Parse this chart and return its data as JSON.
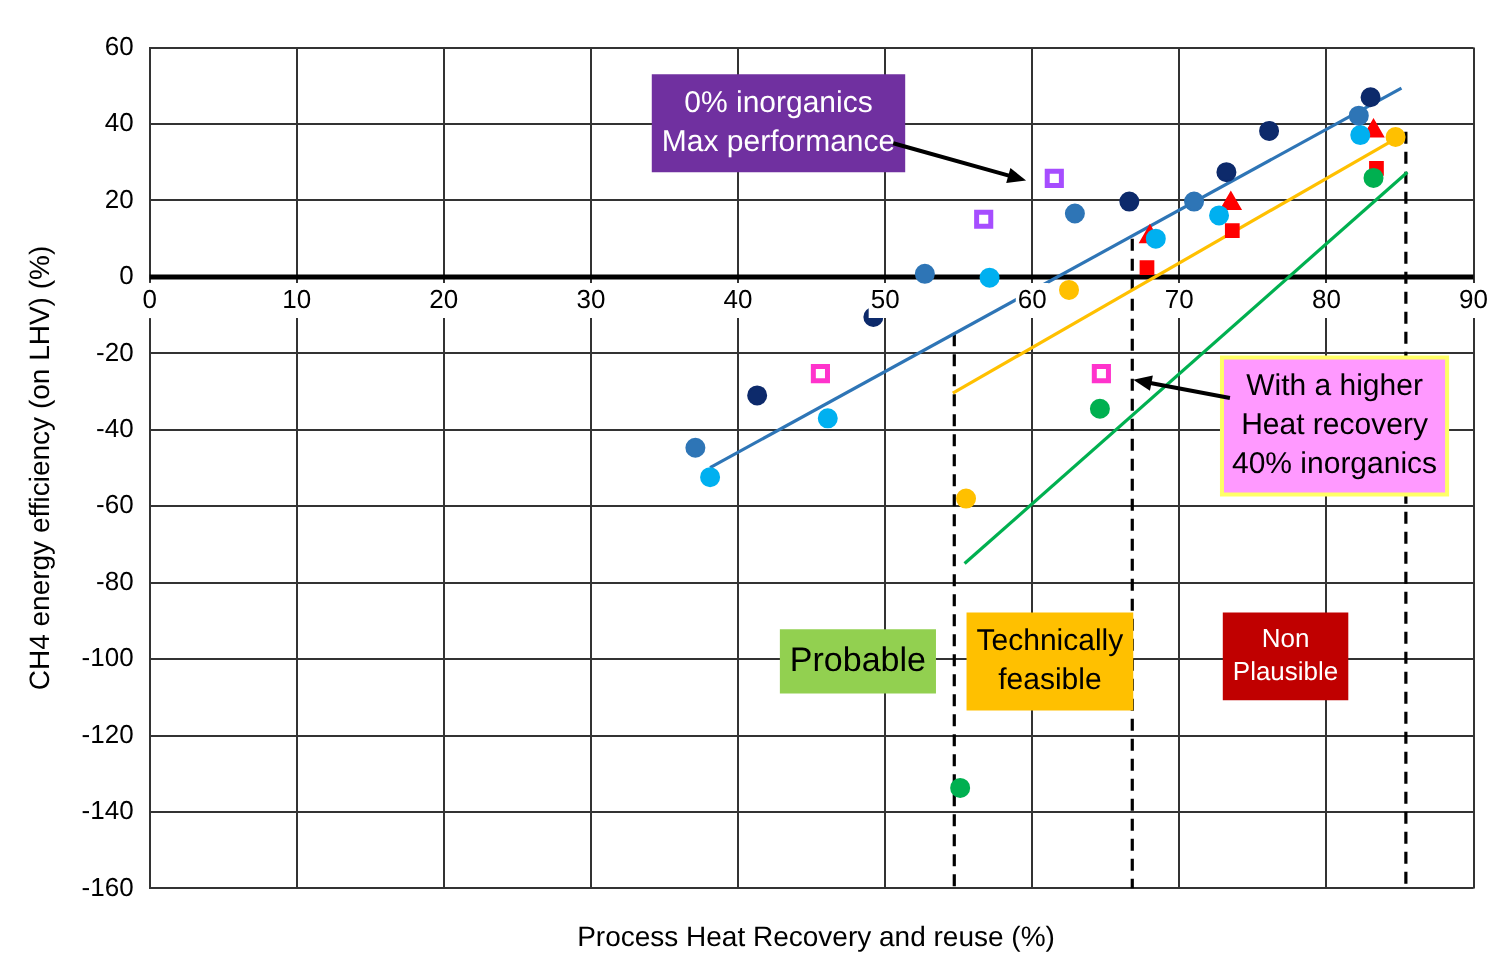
{
  "chart_data": {
    "type": "scatter",
    "xlabel": "Process Heat Recovery and reuse  (%)",
    "ylabel": "CH4 energy efficiency (on LHV) (%)",
    "xlim": [
      0,
      90
    ],
    "xticks": [
      0,
      10,
      20,
      30,
      40,
      50,
      60,
      70,
      80,
      90
    ],
    "ylim": [
      -160,
      60
    ],
    "yticks": [
      -160,
      -140,
      -120,
      -100,
      -80,
      -60,
      -40,
      -20,
      0,
      20,
      40,
      60
    ],
    "grid": true,
    "legend": false,
    "series": [
      {
        "color": "#0d2a6b",
        "marker": "circle",
        "x": [
          41.3,
          49.2,
          66.6,
          73.2,
          76.1,
          83.0
        ],
        "values": [
          -31,
          -10.5,
          19.7,
          27.4,
          38.2,
          47
        ]
      },
      {
        "color": "#2e75b6",
        "marker": "circle",
        "x": [
          37.1,
          52.7,
          62.9,
          71.0,
          82.2
        ],
        "values": [
          -44.7,
          0.8,
          16.6,
          19.7,
          42.2
        ]
      },
      {
        "color": "#00b0f0",
        "marker": "circle",
        "x": [
          38.1,
          46.1,
          57.1,
          68.4,
          72.7,
          82.3
        ],
        "values": [
          -52.4,
          -37,
          -0.2,
          10,
          16.1,
          37.1
        ]
      },
      {
        "color": "#ffc000",
        "marker": "circle",
        "x": [
          62.5,
          55.5,
          84.7
        ],
        "values": [
          -3.4,
          -58,
          36.6
        ]
      },
      {
        "color": "#00b050",
        "marker": "circle",
        "x": [
          64.6,
          55.1,
          83.2
        ],
        "values": [
          -34.5,
          -133.7,
          25.9
        ]
      },
      {
        "color": "#ff0000",
        "marker": "triangle",
        "x": [
          68.0,
          73.5,
          83.2
        ],
        "values": [
          10.5,
          19.2,
          38.2
        ]
      },
      {
        "color": "#ff0000",
        "marker": "square",
        "x": [
          67.8,
          73.6,
          83.4
        ],
        "values": [
          2.4,
          12.1,
          28.4
        ]
      },
      {
        "color": "#a64dff",
        "marker": "square",
        "x": [
          56.7,
          61.5
        ],
        "values": [
          15.1,
          25.8
        ]
      },
      {
        "color": "#ff33cc",
        "marker": "square",
        "x": [
          45.6,
          64.7
        ],
        "values": [
          -25.3,
          -25.3
        ]
      },
      {
        "type": "line",
        "color": "#2e75b6",
        "x": [
          38.1,
          85.1
        ],
        "values": [
          -49.9,
          49.4
        ]
      },
      {
        "type": "line",
        "color": "#ffc000",
        "x": [
          54.6,
          84.9
        ],
        "values": [
          -30.4,
          36.6
        ]
      },
      {
        "type": "line",
        "color": "#00b050",
        "x": [
          55.4,
          85.5
        ],
        "values": [
          -75,
          27.4
        ]
      },
      {
        "type": "line",
        "color": "#000000",
        "line_style": "dashed",
        "x": [
          54.7,
          54.7
        ],
        "values": [
          -15,
          -160
        ]
      },
      {
        "type": "line",
        "color": "#000000",
        "line_style": "dashed",
        "x": [
          66.8,
          66.8
        ],
        "values": [
          10,
          -160
        ]
      },
      {
        "type": "line",
        "color": "#000000",
        "line_style": "dashed",
        "x": [
          85.4,
          85.4
        ],
        "values": [
          38,
          -160
        ]
      }
    ],
    "annotations": [
      "0% inorganics\nMax performance",
      "With a higher\nHeat recovery\n40% inorganics",
      "Probable",
      "Technically\nfeasible",
      "Non\nPlausible"
    ]
  }
}
